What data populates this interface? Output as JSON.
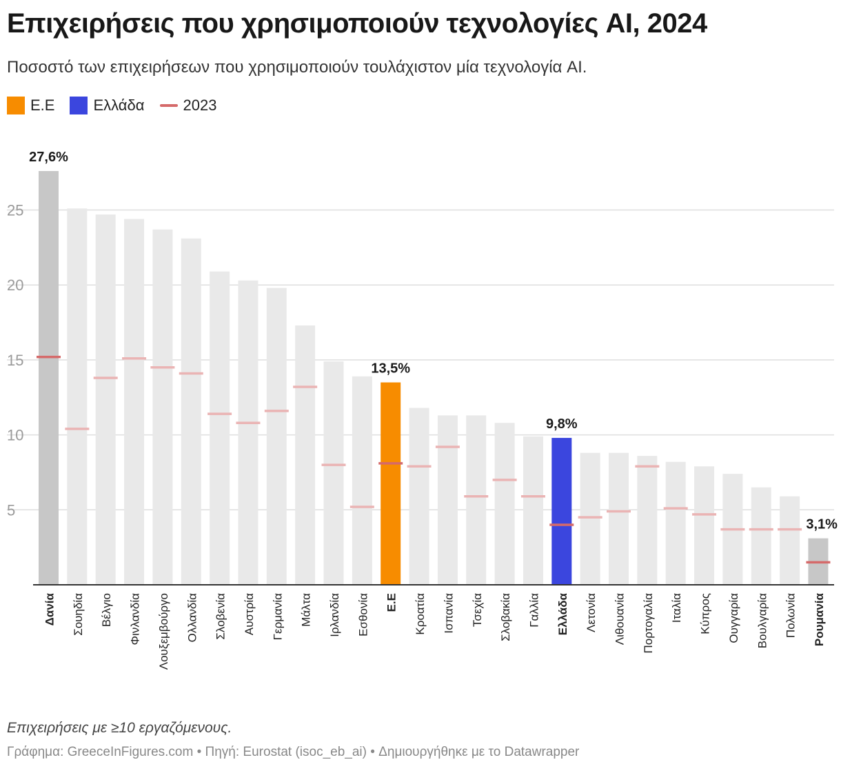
{
  "header": {
    "title": "Επιχειρήσεις που χρησιμοποιούν τεχνολογίες AI, 2024",
    "subtitle": "Ποσοστό των επιχειρήσεων που χρησιμοποιούν τουλάχιστον μία τεχνολογία AI."
  },
  "legend": {
    "items": [
      {
        "label": "Ε.Ε",
        "color": "#f78c00",
        "kind": "box"
      },
      {
        "label": "Ελλάδα",
        "color": "#3b46de",
        "kind": "box"
      },
      {
        "label": "2023",
        "color": "#d56a6a",
        "kind": "line"
      }
    ]
  },
  "footer": {
    "note": "Επιχειρήσεις με ≥10 εργαζόμενους.",
    "credit": "Γράφημα: GreeceInFigures.com • Πηγή: Eurostat (isoc_eb_ai) • Δημιουργήθηκε με το Datawrapper"
  },
  "chart_data": {
    "type": "bar",
    "title": "Επιχειρήσεις που χρησιμοποιούν τεχνολογίες AI, 2024",
    "xlabel": "",
    "ylabel": "",
    "ylim": [
      0,
      27.6
    ],
    "yticks": [
      5,
      10,
      15,
      20,
      25
    ],
    "grid": true,
    "colors": {
      "default_bar": "#e9e9e9",
      "extreme_bar": "#c7c7c7",
      "eu_bar": "#f78c00",
      "greece_bar": "#3b46de",
      "marker_light": "#eab4b4",
      "marker_dark": "#d56a6a"
    },
    "categories": [
      "Δανία",
      "Σουηδία",
      "Βέλγιο",
      "Φινλανδία",
      "Λουξεμβούργο",
      "Ολλανδία",
      "Σλοβενία",
      "Αυστρία",
      "Γερμανία",
      "Μάλτα",
      "Ιρλανδία",
      "Εσθονία",
      "Ε.Ε",
      "Κροατία",
      "Ισπανία",
      "Τσεχία",
      "Σλοβακία",
      "Γαλλία",
      "Ελλάδα",
      "Λετονία",
      "Λιθουανία",
      "Πορτογαλία",
      "Ιταλία",
      "Κύπρος",
      "Ουγγαρία",
      "Βουλγαρία",
      "Πολωνία",
      "Ρουμανία"
    ],
    "series": [
      {
        "name": "2024",
        "values": [
          27.6,
          25.1,
          24.7,
          24.4,
          23.7,
          23.1,
          20.9,
          20.3,
          19.8,
          17.3,
          14.9,
          13.9,
          13.5,
          11.8,
          11.3,
          11.3,
          10.8,
          9.9,
          9.8,
          8.8,
          8.8,
          8.6,
          8.2,
          7.9,
          7.4,
          6.5,
          5.9,
          3.1
        ]
      },
      {
        "name": "2023",
        "values": [
          15.2,
          10.4,
          13.8,
          15.1,
          14.5,
          14.1,
          11.4,
          10.8,
          11.6,
          13.2,
          8.0,
          5.2,
          8.1,
          7.9,
          9.2,
          5.9,
          7.0,
          5.9,
          4.0,
          4.5,
          4.9,
          7.9,
          5.1,
          4.7,
          3.7,
          3.7,
          3.7,
          1.5
        ]
      }
    ],
    "highlights": {
      "Δανία": "extreme",
      "Ε.Ε": "eu",
      "Ελλάδα": "greece",
      "Ρουμανία": "extreme"
    },
    "value_labels": [
      {
        "category": "Δανία",
        "text": "27,6%"
      },
      {
        "category": "Ε.Ε",
        "text": "13,5%"
      },
      {
        "category": "Ελλάδα",
        "text": "9,8%"
      },
      {
        "category": "Ρουμανία",
        "text": "3,1%"
      }
    ]
  }
}
